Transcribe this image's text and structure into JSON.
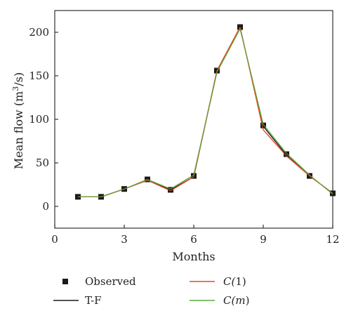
{
  "chart_data": {
    "type": "line",
    "xlabel": "Months",
    "ylabel_main": "Mean flow (m",
    "ylabel_sup": "3",
    "ylabel_tail": "/s)",
    "xlim": [
      0,
      12
    ],
    "ylim": [
      -25,
      225
    ],
    "x_ticks": [
      0,
      3,
      6,
      9,
      12
    ],
    "y_ticks": [
      0,
      50,
      100,
      150,
      200
    ],
    "x": [
      1,
      2,
      3,
      4,
      5,
      6,
      7,
      8,
      9,
      10,
      11,
      12
    ],
    "series": [
      {
        "name": "Observed",
        "key": "observed",
        "style": "marker",
        "color": "#1a1a1a",
        "values": [
          11,
          11,
          20,
          31,
          19,
          35,
          156,
          206,
          93,
          60,
          35,
          15
        ]
      },
      {
        "name": "T-F",
        "key": "tf",
        "style": "line",
        "color": "#1a1a1a",
        "values": [
          11,
          11,
          20,
          30,
          19,
          34,
          155,
          205,
          92,
          59,
          35,
          15
        ]
      },
      {
        "name_prefix": "C(",
        "name_arg": "1",
        "name_suffix": ")",
        "key": "c1",
        "style": "line",
        "color": "#e8452a",
        "values": [
          11,
          11,
          20,
          30,
          18,
          34,
          156,
          206,
          88,
          58,
          35,
          15
        ]
      },
      {
        "name_prefix": "C(",
        "name_arg": "m",
        "name_suffix": ")",
        "key": "cm",
        "style": "line",
        "color": "#5aab3a",
        "values": [
          11,
          11,
          20,
          31,
          20,
          36,
          154,
          204,
          94,
          61,
          36,
          14
        ]
      }
    ],
    "legend_position": "bottom"
  }
}
